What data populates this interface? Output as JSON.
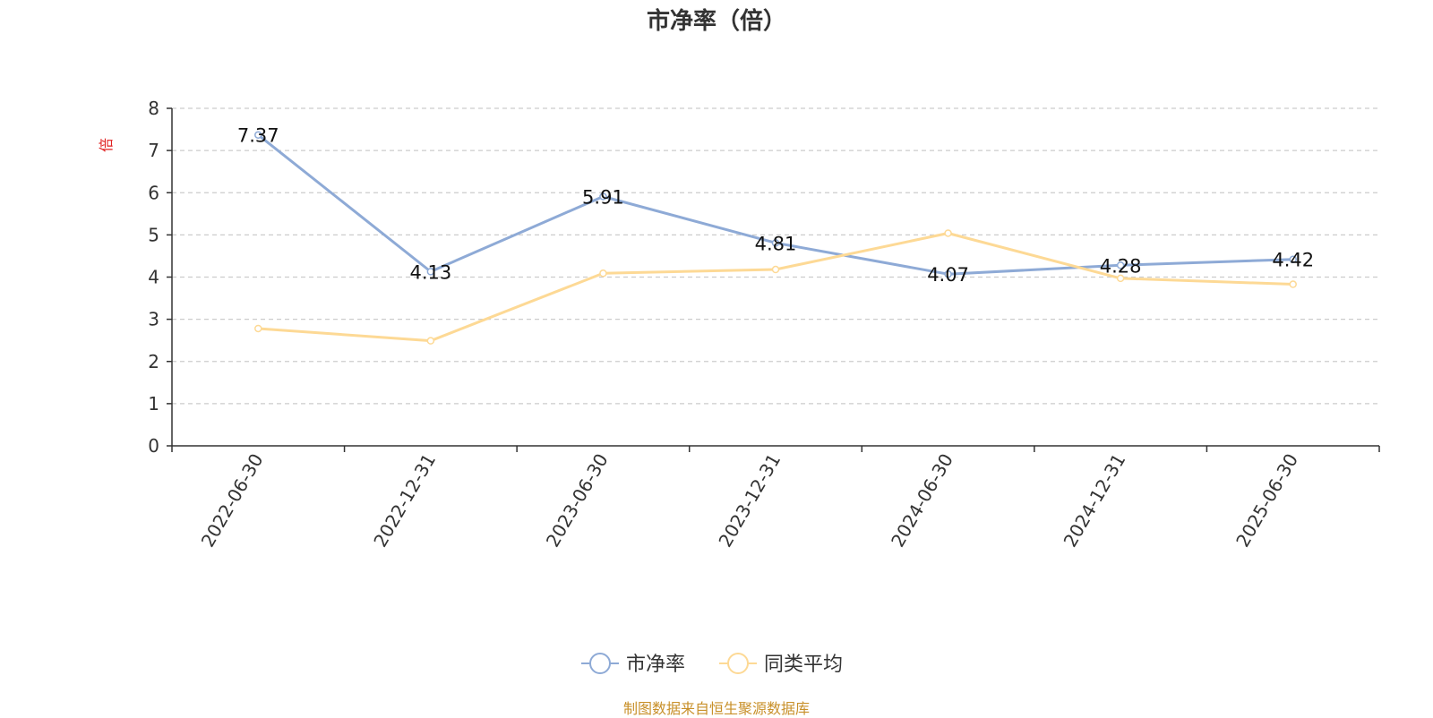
{
  "chart_data": {
    "type": "line",
    "title": "市净率（倍）",
    "ylabel": "倍",
    "ylim": [
      0,
      8
    ],
    "yticks": [
      0,
      1,
      2,
      3,
      4,
      5,
      6,
      7,
      8
    ],
    "grid": true,
    "legend_position": "bottom-center",
    "categories": [
      "2022-06-30",
      "2022-12-31",
      "2023-06-30",
      "2023-12-31",
      "2024-06-30",
      "2024-12-31",
      "2025-06-30"
    ],
    "series": [
      {
        "name": "市净率",
        "color": "#8eaad6",
        "values": [
          7.37,
          4.13,
          5.91,
          4.81,
          4.07,
          4.28,
          4.42
        ],
        "labels": [
          "7.37",
          "4.13",
          "5.91",
          "4.81",
          "4.07",
          "4.28",
          "4.42"
        ],
        "show_labels": true
      },
      {
        "name": "同类平均",
        "color": "#fdd995",
        "values": [
          2.78,
          2.49,
          4.09,
          4.18,
          5.04,
          3.97,
          3.83
        ],
        "show_labels": false
      }
    ]
  },
  "source_note": "制图数据来自恒生聚源数据库",
  "colors": {
    "axis": "#333333",
    "grid": "#cccccc",
    "ylabel": "#e02020",
    "source": "#c8902a"
  }
}
